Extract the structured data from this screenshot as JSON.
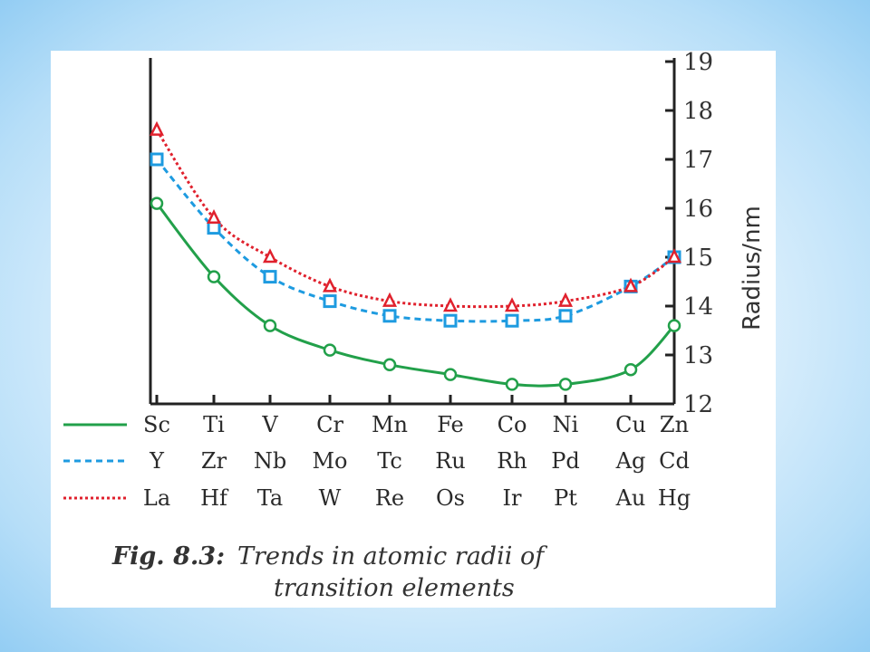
{
  "chart_data": {
    "type": "line",
    "categories": [
      [
        "Sc",
        "Y",
        "La"
      ],
      [
        "Ti",
        "Zr",
        "Hf"
      ],
      [
        "V",
        "Nb",
        "Ta"
      ],
      [
        "Cr",
        "Mo",
        "W"
      ],
      [
        "Mn",
        "Tc",
        "Re"
      ],
      [
        "Fe",
        "Ru",
        "Os"
      ],
      [
        "Co",
        "Rh",
        "Ir"
      ],
      [
        "Ni",
        "Pd",
        "Pt"
      ],
      [
        "Cu",
        "Ag",
        "Au"
      ],
      [
        "Zn",
        "Cd",
        "Hg"
      ]
    ],
    "series": [
      {
        "color": "#22a04a",
        "line_style": "solid",
        "marker": "circle",
        "values": [
          16.1,
          14.6,
          13.6,
          13.1,
          12.8,
          12.6,
          12.4,
          12.4,
          12.7,
          13.6
        ]
      },
      {
        "color": "#1e9be0",
        "line_style": "dashed",
        "marker": "square",
        "values": [
          17.0,
          15.6,
          14.6,
          14.1,
          13.8,
          13.7,
          13.7,
          13.8,
          14.4,
          15.0
        ]
      },
      {
        "color": "#e0212d",
        "line_style": "dotted",
        "marker": "triangle",
        "values": [
          17.6,
          15.8,
          15.0,
          14.4,
          14.1,
          14.0,
          14.0,
          14.1,
          14.4,
          15.0
        ]
      }
    ],
    "ylabel": "Radius/nm",
    "ylim": [
      12,
      19
    ],
    "yticks": [
      "12",
      "13",
      "14",
      "15",
      "16",
      "17",
      "18",
      "19"
    ],
    "y_axis_position": "right",
    "grid": false,
    "legend": "bottom-left"
  },
  "caption": {
    "label": "Fig. 8.3:",
    "line1": "Trends in atomic radii of",
    "line2": "transition elements"
  }
}
